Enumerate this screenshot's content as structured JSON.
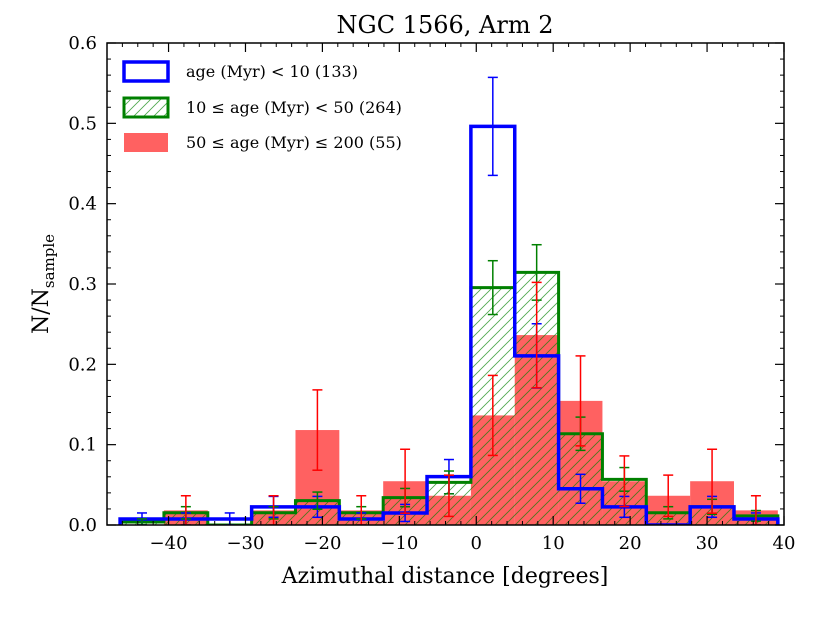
{
  "chart_data": {
    "type": "histogram",
    "title": "NGC 1566, Arm 2",
    "xlabel": "Azimuthal distance [degrees]",
    "ylabel_main": "N/N",
    "ylabel_sub": "sample",
    "xlim": [
      -48,
      40
    ],
    "ylim": [
      0,
      0.6
    ],
    "xticks": [
      -40,
      -30,
      -20,
      -10,
      0,
      10,
      20,
      30,
      40
    ],
    "xtick_labels": [
      "−40",
      "−30",
      "−20",
      "−10",
      "0",
      "10",
      "20",
      "30",
      "40"
    ],
    "yticks": [
      0.0,
      0.1,
      0.2,
      0.3,
      0.4,
      0.5,
      0.6
    ],
    "ytick_labels": [
      "0.0",
      "0.1",
      "0.2",
      "0.3",
      "0.4",
      "0.5",
      "0.6"
    ],
    "bin_edges": [
      -46.3,
      -40.6,
      -34.9,
      -29.2,
      -23.5,
      -17.8,
      -12.1,
      -6.4,
      -0.7,
      5.0,
      10.7,
      16.4,
      22.1,
      27.8,
      33.5,
      39.2
    ],
    "legend_position": "upper-left",
    "series": [
      {
        "name": "age (Myr) < 10 (133)",
        "style": "step",
        "color": "#0000ff",
        "values": [
          0.0075,
          0.0075,
          0.0075,
          0.0226,
          0.0226,
          0.0075,
          0.015,
          0.0602,
          0.4962,
          0.2105,
          0.0451,
          0.0226,
          0.0,
          0.0226,
          0.0075
        ],
        "errors": [
          0.0075,
          0.0075,
          0.0075,
          0.013,
          0.013,
          0.0075,
          0.0106,
          0.0213,
          0.061,
          0.04,
          0.018,
          0.013,
          0.0,
          0.013,
          0.0075
        ]
      },
      {
        "name": "10 ≤ age (Myr) < 50 (264)",
        "style": "hatched-step",
        "color": "#008000",
        "values": [
          0.0038,
          0.0152,
          0.0,
          0.0152,
          0.0303,
          0.0152,
          0.0341,
          0.053,
          0.2955,
          0.3144,
          0.1136,
          0.0568,
          0.0152,
          0.0227,
          0.0114
        ],
        "errors": [
          0.0038,
          0.0076,
          0.0,
          0.0076,
          0.0107,
          0.0076,
          0.0114,
          0.0142,
          0.0335,
          0.0345,
          0.0207,
          0.0147,
          0.0076,
          0.0093,
          0.0066
        ]
      },
      {
        "name": "50 ≤ age (Myr) ≤ 200 (55)",
        "style": "filled",
        "color": "#ff0000",
        "values": [
          0.0,
          0.0182,
          0.0,
          0.0182,
          0.1182,
          0.0182,
          0.0545,
          0.0364,
          0.1364,
          0.2364,
          0.1545,
          0.0545,
          0.0364,
          0.0545,
          0.0182
        ],
        "errors": [
          0.0,
          0.0182,
          0.0,
          0.0182,
          0.05,
          0.0182,
          0.0398,
          0.0257,
          0.0498,
          0.0656,
          0.056,
          0.0315,
          0.0257,
          0.0398,
          0.0182
        ]
      }
    ]
  }
}
